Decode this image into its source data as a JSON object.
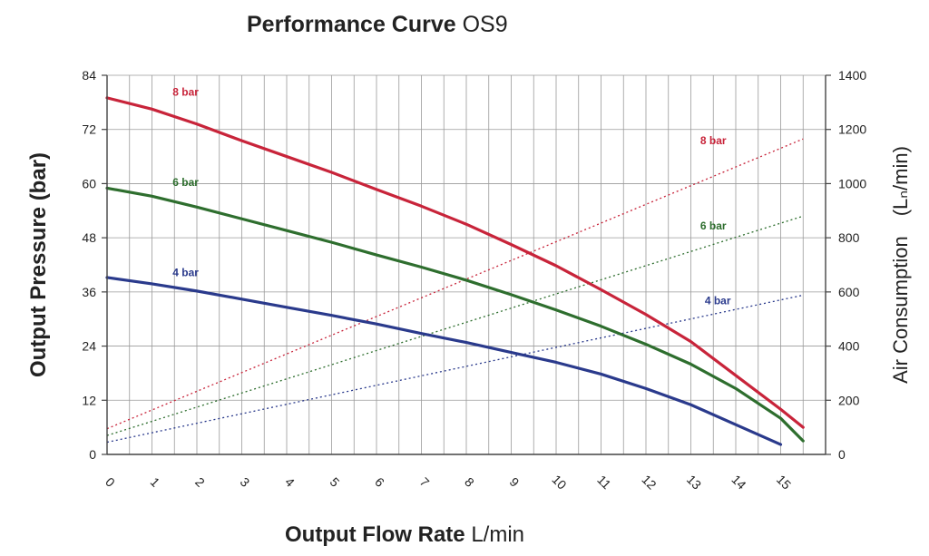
{
  "chart_data": {
    "type": "line",
    "title": "Performance Curve",
    "title_suffix": "OS9",
    "xlabel": "Output Flow Rate",
    "xlabel_unit": "L/min",
    "ylabel": "Output Pressure  (bar)",
    "y2label": "Air Consumption　(Lₙ/min)",
    "xlim": [
      0,
      16
    ],
    "ylim": [
      0,
      84
    ],
    "y2lim": [
      0,
      1400
    ],
    "grid": true,
    "x_minor_step": 0.5,
    "x_ticks": [
      "0",
      "1",
      "2",
      "3",
      "4",
      "5",
      "6",
      "7",
      "8",
      "9",
      "10",
      "11",
      "12",
      "13",
      "14",
      "15"
    ],
    "y_ticks": [
      "0",
      "12",
      "24",
      "36",
      "48",
      "60",
      "72",
      "84"
    ],
    "y2_ticks": [
      "0",
      "200",
      "400",
      "600",
      "800",
      "1000",
      "1200",
      "1400"
    ],
    "colors": {
      "8 bar": "#c8243a",
      "6 bar": "#2e6e2e",
      "4 bar": "#2a3a8c",
      "grid": "#9a9a9a",
      "axis": "#444444"
    },
    "pressure_series": [
      {
        "name": "8 bar",
        "label": "8 bar",
        "axis": "left",
        "style": "solid",
        "x": [
          0,
          1,
          2,
          3,
          4,
          5,
          6,
          7,
          8,
          9,
          10,
          11,
          12,
          13,
          14,
          15,
          15.5
        ],
        "y": [
          79,
          76.5,
          73.2,
          69.5,
          66,
          62.5,
          58.7,
          55,
          51,
          46.5,
          41.8,
          36.5,
          31,
          25,
          17.5,
          10,
          6
        ]
      },
      {
        "name": "6 bar",
        "label": "6 bar",
        "axis": "left",
        "style": "solid",
        "x": [
          0,
          1,
          2,
          3,
          4,
          5,
          6,
          7,
          8,
          9,
          10,
          11,
          12,
          13,
          14,
          15,
          15.5
        ],
        "y": [
          59,
          57.2,
          54.8,
          52.2,
          49.6,
          47,
          44.2,
          41.5,
          38.6,
          35.4,
          32,
          28.4,
          24.4,
          20,
          14.6,
          8,
          3
        ]
      },
      {
        "name": "4 bar",
        "label": "4 bar",
        "axis": "left",
        "style": "solid",
        "x": [
          0,
          1,
          2,
          3,
          4,
          5,
          6,
          7,
          8,
          9,
          10,
          11,
          12,
          13,
          14,
          15
        ],
        "y": [
          39.2,
          37.8,
          36.2,
          34.4,
          32.6,
          30.8,
          28.9,
          26.8,
          24.8,
          22.6,
          20.4,
          17.8,
          14.6,
          11,
          6.6,
          2.2
        ]
      }
    ],
    "air_series": [
      {
        "name": "8 bar",
        "label": "8 bar",
        "axis": "right",
        "style": "dotted",
        "x": [
          0,
          15.5
        ],
        "y": [
          95,
          1165
        ]
      },
      {
        "name": "6 bar",
        "label": "6 bar",
        "axis": "right",
        "style": "dotted",
        "x": [
          0,
          15.5
        ],
        "y": [
          70,
          880
        ]
      },
      {
        "name": "4 bar",
        "label": "4 bar",
        "axis": "right",
        "style": "dotted",
        "x": [
          0,
          15.5
        ],
        "y": [
          45,
          588
        ]
      }
    ],
    "annotations": [
      {
        "text": "8 bar",
        "series": "8 bar",
        "x": 1.75,
        "y": 79.5,
        "axis": "left"
      },
      {
        "text": "6 bar",
        "series": "6 bar",
        "x": 1.75,
        "y": 59.5,
        "axis": "left"
      },
      {
        "text": "4 bar",
        "series": "4 bar",
        "x": 1.75,
        "y": 39.5,
        "axis": "left"
      },
      {
        "text": "8 bar",
        "series": "8 bar",
        "x": 13.5,
        "y": 1145,
        "axis": "right"
      },
      {
        "text": "6 bar",
        "series": "6 bar",
        "x": 13.5,
        "y": 830,
        "axis": "right"
      },
      {
        "text": "4 bar",
        "series": "4 bar",
        "x": 13.6,
        "y": 555,
        "axis": "right"
      }
    ]
  }
}
